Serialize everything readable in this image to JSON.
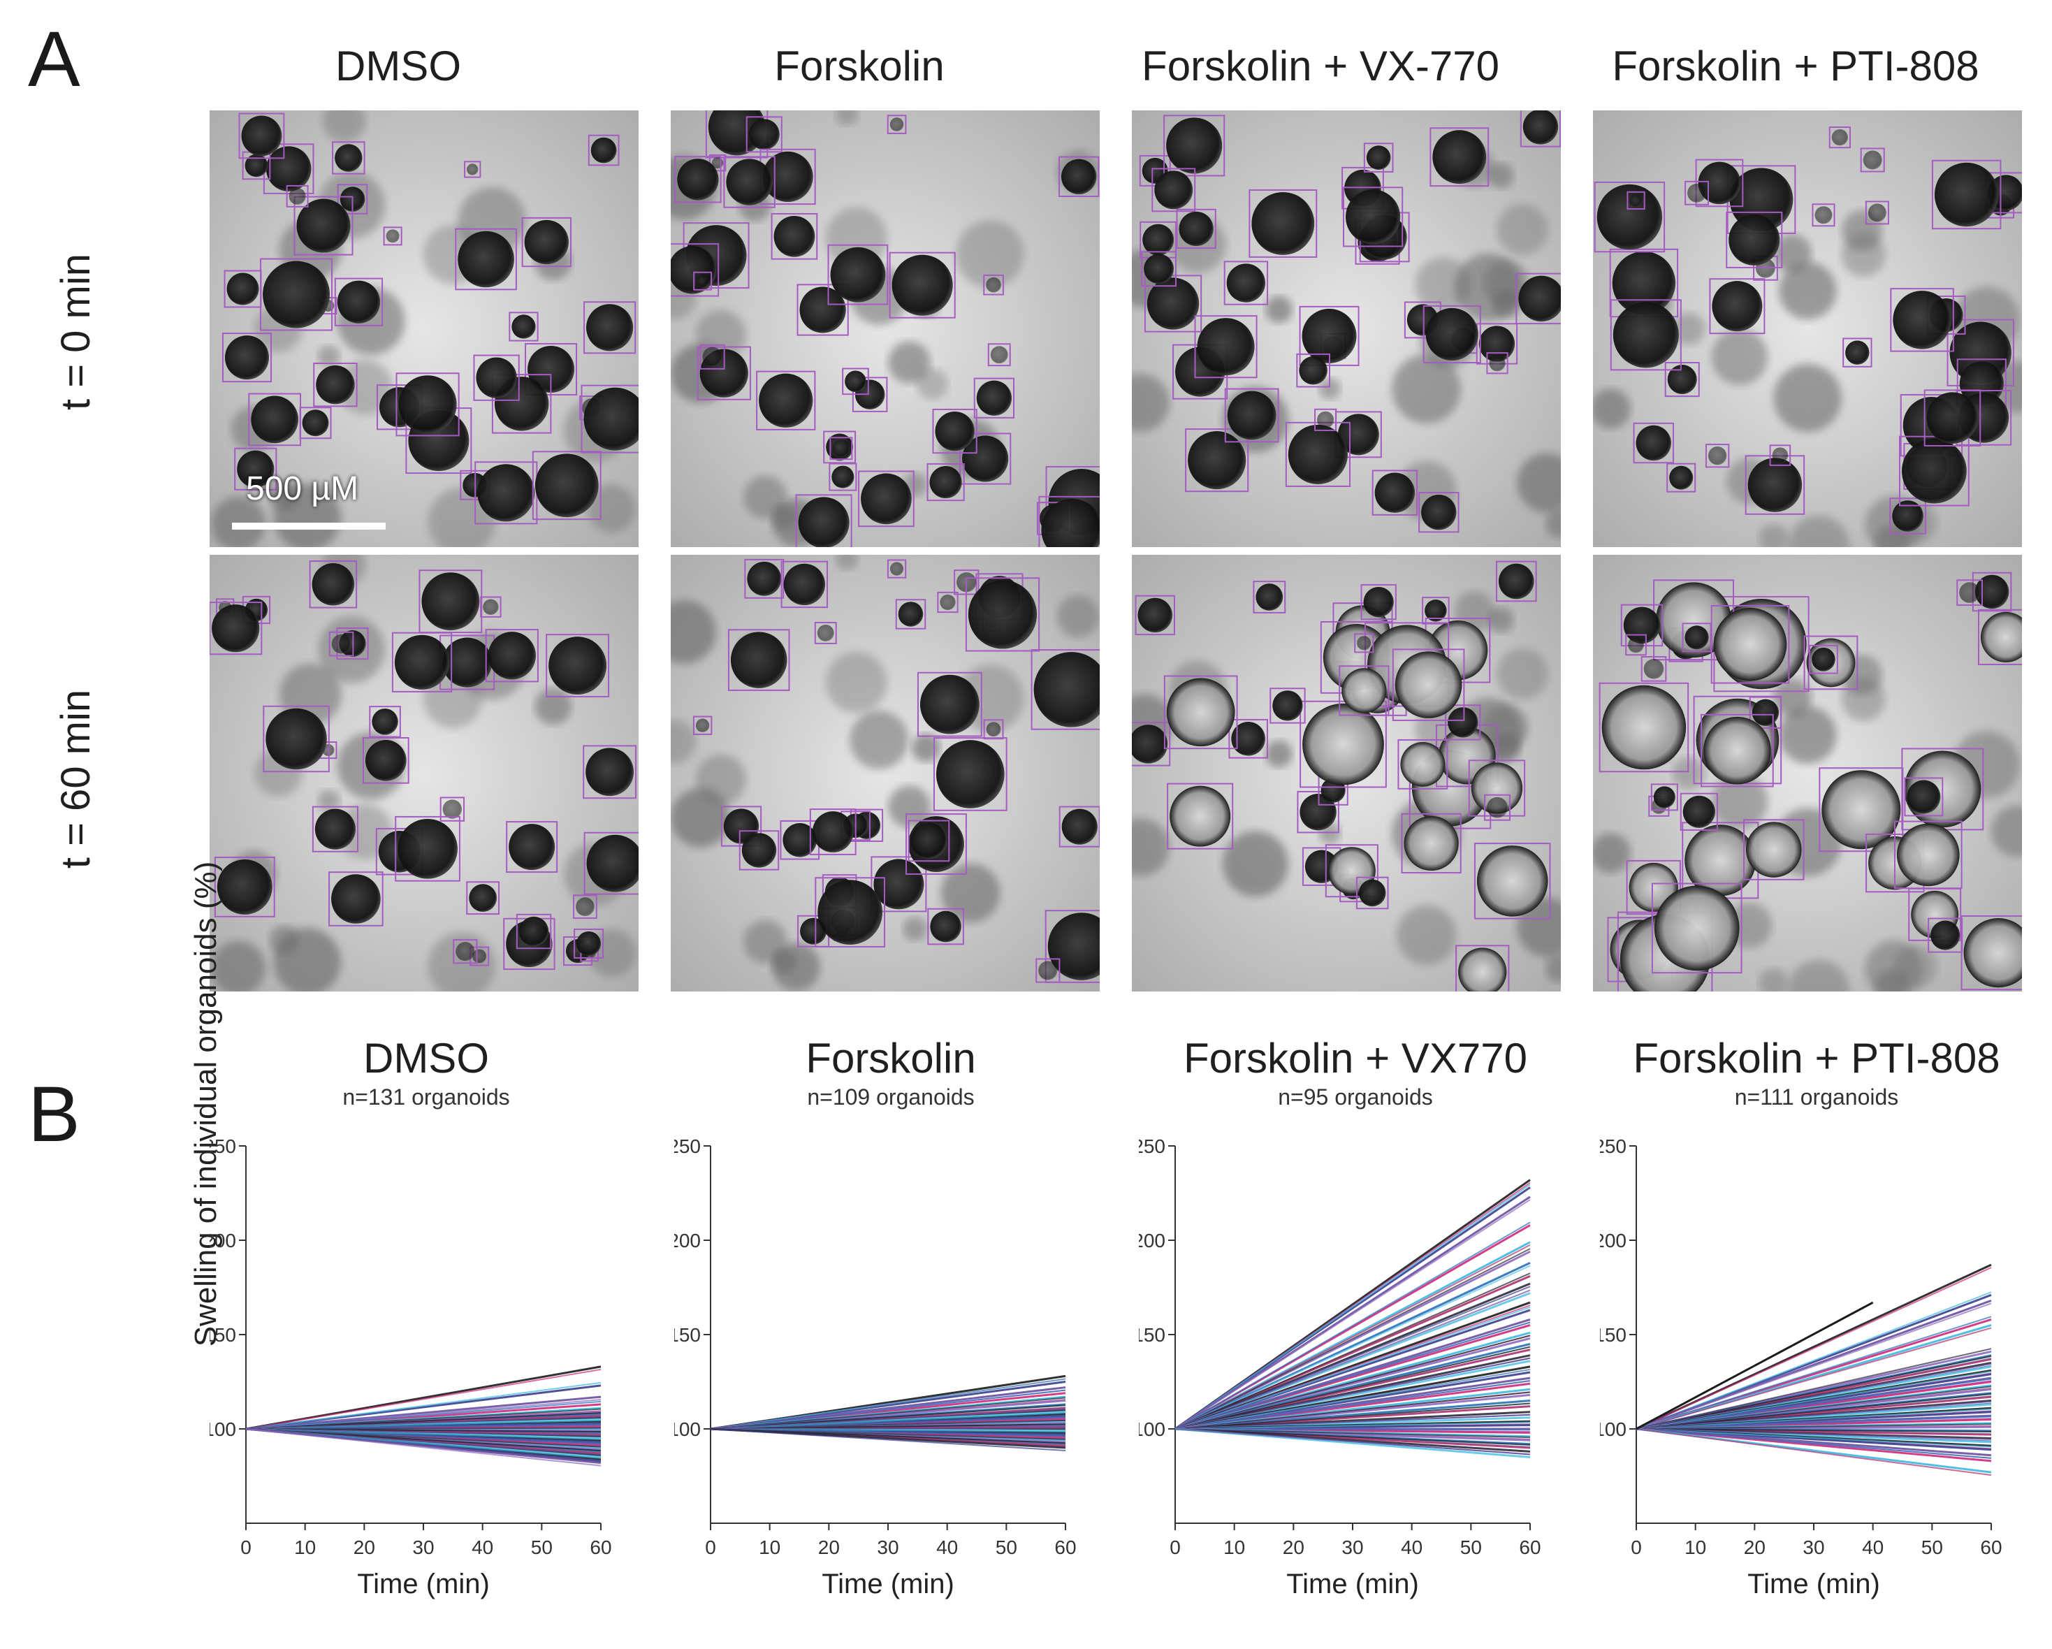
{
  "panel_a": {
    "letter": "A",
    "columns": [
      "DMSO",
      "Forskolin",
      "Forskolin + VX-770",
      "Forskolin + PTI-808"
    ],
    "rows": [
      "t = 0 min",
      "t = 60 min"
    ],
    "scale_bar": "500 µM"
  },
  "panel_b": {
    "letter": "B",
    "ylabel": "Swelling of individual organoids (%)"
  },
  "chart_data": [
    {
      "type": "line",
      "title": "DMSO",
      "subtitle": "n=131 organoids",
      "xlabel": "Time (min)",
      "ylabel": "Swelling of individual organoids (%)",
      "xlim": [
        0,
        60
      ],
      "ylim": [
        50,
        250
      ],
      "xticks": [
        0,
        10,
        20,
        30,
        40,
        50,
        60
      ],
      "yticks": [
        100,
        150,
        200,
        250
      ],
      "series_endpoints_at_60": [
        133,
        123,
        117,
        113,
        111,
        109,
        108,
        107,
        106,
        105,
        104,
        103,
        102,
        101,
        100,
        99,
        98,
        97,
        96,
        95,
        94,
        93,
        92,
        91,
        90,
        89,
        88,
        87,
        86,
        85,
        84,
        83,
        82
      ]
    },
    {
      "type": "line",
      "title": "Forskolin",
      "subtitle": "n=109 organoids",
      "xlabel": "Time (min)",
      "ylabel": "Swelling of individual organoids (%)",
      "xlim": [
        0,
        60
      ],
      "ylim": [
        50,
        250
      ],
      "xticks": [
        0,
        10,
        20,
        30,
        40,
        50,
        60
      ],
      "yticks": [
        100,
        150,
        200,
        250
      ],
      "series_endpoints_at_60": [
        128,
        125,
        122,
        119,
        117,
        115,
        113,
        111,
        110,
        109,
        108,
        107,
        106,
        105,
        104,
        103,
        102,
        101,
        100,
        99,
        98,
        97,
        96,
        95,
        94,
        93,
        92,
        91,
        90
      ]
    },
    {
      "type": "line",
      "title": "Forskolin + VX770",
      "subtitle": "n=95 organoids",
      "xlabel": "Time (min)",
      "ylabel": "Swelling of individual organoids (%)",
      "xlim": [
        0,
        60
      ],
      "ylim": [
        50,
        250
      ],
      "xticks": [
        0,
        10,
        20,
        30,
        40,
        50,
        60
      ],
      "yticks": [
        100,
        150,
        200,
        250
      ],
      "series_endpoints_at_60": [
        232,
        228,
        223,
        208,
        199,
        194,
        188,
        181,
        177,
        172,
        167,
        163,
        158,
        155,
        151,
        148,
        145,
        142,
        139,
        136,
        133,
        130,
        127,
        124,
        121,
        118,
        115,
        112,
        109,
        106,
        104,
        102,
        100,
        98,
        96,
        94,
        92,
        90,
        88,
        85
      ]
    },
    {
      "type": "line",
      "title": "Forskolin + PTI-808",
      "subtitle": "n=111 organoids",
      "xlabel": "Time (min)",
      "ylabel": "Swelling of individual organoids (%)",
      "xlim": [
        0,
        60
      ],
      "ylim": [
        50,
        250
      ],
      "xticks": [
        0,
        10,
        20,
        30,
        40,
        50,
        60
      ],
      "yticks": [
        100,
        150,
        200,
        250
      ],
      "series_endpoints_at_60": [
        187,
        171,
        168,
        158,
        155,
        141,
        139,
        137,
        135,
        133,
        131,
        129,
        127,
        125,
        123,
        121,
        119,
        117,
        115,
        113,
        111,
        109,
        107,
        105,
        103,
        101,
        99,
        97,
        95,
        93,
        91,
        89,
        86,
        83,
        77
      ],
      "short_series": {
        "x_end": 40,
        "y_end": 167
      }
    }
  ],
  "colors": {
    "line_palette": [
      "#1b1b1b",
      "#3a3f8f",
      "#6a4fa0",
      "#d02a7a",
      "#3cb9e0",
      "#8e6bbf",
      "#2a6fb8",
      "#b0306e",
      "#2c2c3c",
      "#59c6e8"
    ],
    "box": "#a45cc0"
  }
}
